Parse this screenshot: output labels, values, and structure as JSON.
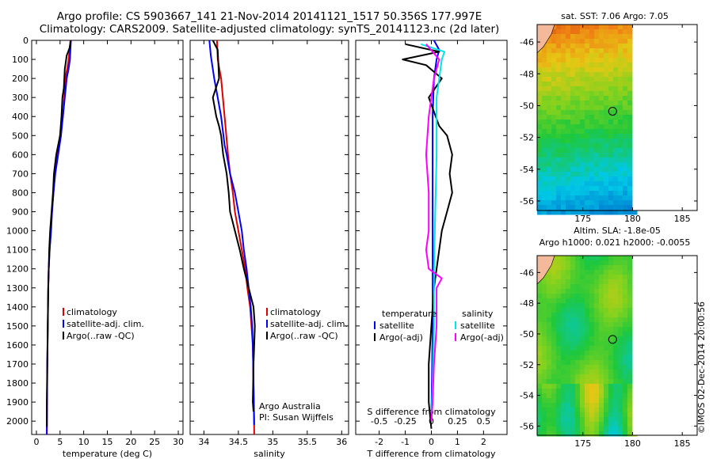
{
  "header": {
    "line1": "Argo profile: CS 5903667_141 21-Nov-2014 20141121_1517 50.356S 177.997E",
    "line2": "Climatology: CARS2009. Satellite-adjusted climatology: synTS_20141123.nc (2d later)"
  },
  "colors": {
    "climatology": "#e00000",
    "satellite": "#0000ff",
    "argo": "#000000",
    "sat_salinity": "#00e5e5",
    "argo_salinity": "#ff00ff"
  },
  "credit": "©IMOS 02-Dec-2014 20:00:56",
  "chart_data": [
    {
      "type": "line",
      "id": "temperature",
      "xlabel": "temperature (deg C)",
      "ylabel": "",
      "xlim": [
        -1,
        31
      ],
      "ylim": [
        2070,
        0
      ],
      "xticks": [
        0,
        5,
        10,
        15,
        20,
        25,
        30
      ],
      "yticks": [
        0,
        100,
        200,
        300,
        400,
        500,
        600,
        700,
        800,
        900,
        1000,
        1100,
        1200,
        1300,
        1400,
        1500,
        1600,
        1700,
        1800,
        1900,
        2000
      ],
      "legend": [
        "climatology",
        "satellite-adj. clim.",
        "Argo(..raw -QC)"
      ],
      "series": [
        {
          "name": "climatology",
          "points": [
            [
              7.2,
              0
            ],
            [
              7.0,
              50
            ],
            [
              6.8,
              100
            ],
            [
              6.5,
              150
            ],
            [
              6.1,
              200
            ],
            [
              5.9,
              300
            ],
            [
              5.6,
              400
            ],
            [
              5.0,
              500
            ],
            [
              4.4,
              600
            ],
            [
              3.9,
              700
            ],
            [
              3.6,
              800
            ],
            [
              3.3,
              900
            ],
            [
              3.0,
              1000
            ],
            [
              2.8,
              1100
            ],
            [
              2.6,
              1200
            ],
            [
              2.5,
              1300
            ],
            [
              2.4,
              1500
            ],
            [
              2.3,
              1700
            ],
            [
              2.2,
              2070
            ]
          ]
        },
        {
          "name": "satellite-adj. clim.",
          "points": [
            [
              7.3,
              0
            ],
            [
              7.2,
              50
            ],
            [
              7.1,
              100
            ],
            [
              6.8,
              150
            ],
            [
              6.4,
              200
            ],
            [
              6.0,
              300
            ],
            [
              5.6,
              400
            ],
            [
              5.2,
              500
            ],
            [
              4.6,
              600
            ],
            [
              4.0,
              700
            ],
            [
              3.6,
              800
            ],
            [
              3.3,
              900
            ],
            [
              3.1,
              1000
            ],
            [
              2.8,
              1100
            ],
            [
              2.6,
              1200
            ],
            [
              2.5,
              1300
            ],
            [
              2.4,
              1500
            ],
            [
              2.3,
              1700
            ],
            [
              2.2,
              2070
            ]
          ]
        },
        {
          "name": "Argo(..raw -QC)",
          "points": [
            [
              7.3,
              0
            ],
            [
              7.0,
              40
            ],
            [
              6.4,
              80
            ],
            [
              6.0,
              150
            ],
            [
              5.8,
              250
            ],
            [
              5.5,
              300
            ],
            [
              5.3,
              400
            ],
            [
              5.0,
              500
            ],
            [
              4.2,
              600
            ],
            [
              3.7,
              700
            ],
            [
              3.5,
              800
            ],
            [
              3.2,
              900
            ],
            [
              2.9,
              1000
            ],
            [
              2.7,
              1100
            ],
            [
              2.6,
              1200
            ],
            [
              2.5,
              1300
            ],
            [
              2.4,
              1500
            ],
            [
              2.3,
              1700
            ],
            [
              2.2,
              1900
            ],
            [
              2.2,
              2030
            ]
          ]
        }
      ]
    },
    {
      "type": "line",
      "id": "salinity",
      "xlabel": "salinity",
      "ylabel": "",
      "xlim": [
        33.8,
        36.1
      ],
      "ylim": [
        2070,
        0
      ],
      "xticks": [
        34,
        34.5,
        35,
        35.5,
        36
      ],
      "legend": [
        "climatology",
        "satellite-adj. clim.",
        "Argo(..raw -QC)"
      ],
      "annotation": [
        "Argo Australia",
        "PI: Susan Wijffels"
      ],
      "series": [
        {
          "name": "climatology",
          "points": [
            [
              34.19,
              0
            ],
            [
              34.2,
              100
            ],
            [
              34.25,
              200
            ],
            [
              34.3,
              400
            ],
            [
              34.35,
              600
            ],
            [
              34.38,
              700
            ],
            [
              34.42,
              800
            ],
            [
              34.45,
              900
            ],
            [
              34.5,
              1000
            ],
            [
              34.55,
              1100
            ],
            [
              34.6,
              1200
            ],
            [
              34.63,
              1300
            ],
            [
              34.67,
              1400
            ],
            [
              34.69,
              1500
            ],
            [
              34.71,
              1600
            ],
            [
              34.72,
              1800
            ],
            [
              34.73,
              2070
            ]
          ]
        },
        {
          "name": "satellite-adj. clim.",
          "points": [
            [
              34.08,
              0
            ],
            [
              34.1,
              80
            ],
            [
              34.15,
              200
            ],
            [
              34.2,
              300
            ],
            [
              34.25,
              400
            ],
            [
              34.3,
              550
            ],
            [
              34.33,
              600
            ],
            [
              34.38,
              700
            ],
            [
              34.45,
              800
            ],
            [
              34.5,
              900
            ],
            [
              34.55,
              1000
            ],
            [
              34.58,
              1100
            ],
            [
              34.62,
              1200
            ],
            [
              34.65,
              1300
            ],
            [
              34.68,
              1400
            ],
            [
              34.7,
              1500
            ],
            [
              34.71,
              1600
            ],
            [
              34.72,
              1800
            ],
            [
              34.73,
              2020
            ]
          ]
        },
        {
          "name": "Argo(..raw -QC)",
          "points": [
            [
              34.13,
              0
            ],
            [
              34.2,
              50
            ],
            [
              34.22,
              200
            ],
            [
              34.13,
              300
            ],
            [
              34.18,
              400
            ],
            [
              34.22,
              450
            ],
            [
              34.25,
              500
            ],
            [
              34.28,
              600
            ],
            [
              34.33,
              700
            ],
            [
              34.36,
              800
            ],
            [
              34.38,
              900
            ],
            [
              34.45,
              1000
            ],
            [
              34.52,
              1100
            ],
            [
              34.58,
              1200
            ],
            [
              34.65,
              1300
            ],
            [
              34.72,
              1400
            ],
            [
              34.74,
              1500
            ],
            [
              34.73,
              1600
            ],
            [
              34.72,
              1700
            ],
            [
              34.71,
              1900
            ],
            [
              34.72,
              1950
            ]
          ]
        }
      ]
    },
    {
      "type": "line",
      "id": "difference",
      "xlabel": "T difference from climatology",
      "xlabel_top": "S difference from climatology",
      "xlim": [
        -2.9,
        2.9
      ],
      "ylim": [
        2070,
        0
      ],
      "xticks_T": [
        -2,
        -1,
        0,
        1,
        2
      ],
      "xticks_S": [
        {
          "label": "-0.5",
          "t": -2
        },
        {
          "label": "-0.25",
          "t": -1
        },
        {
          "label": "0",
          "t": 0
        },
        {
          "label": "0.25",
          "t": 1
        },
        {
          "label": "0.5",
          "t": 2
        }
      ],
      "legend_left_title": "temperature",
      "legend_left": [
        "satellite",
        "Argo(-adj)"
      ],
      "legend_right_title": "salinity",
      "legend_right": [
        "satellite",
        "Argo(-adj)"
      ],
      "series": [
        {
          "name": "temperature satellite",
          "points": [
            [
              0.1,
              0
            ],
            [
              0.3,
              50
            ],
            [
              0.2,
              100
            ],
            [
              0.1,
              200
            ],
            [
              0.05,
              400
            ],
            [
              0.05,
              600
            ],
            [
              0.05,
              800
            ],
            [
              0.05,
              1000
            ],
            [
              0.05,
              1200
            ],
            [
              0.05,
              1500
            ],
            [
              0,
              2000
            ]
          ]
        },
        {
          "name": "temperature Argo(-adj)",
          "points": [
            [
              -1.0,
              20
            ],
            [
              0.3,
              60
            ],
            [
              -1.1,
              100
            ],
            [
              -0.2,
              130
            ],
            [
              0.4,
              200
            ],
            [
              -0.1,
              300
            ],
            [
              0.3,
              450
            ],
            [
              0.6,
              500
            ],
            [
              0.8,
              600
            ],
            [
              0.7,
              700
            ],
            [
              0.8,
              800
            ],
            [
              0.6,
              900
            ],
            [
              0.4,
              1000
            ],
            [
              0.3,
              1100
            ],
            [
              0.2,
              1200
            ],
            [
              0.1,
              1300
            ],
            [
              0,
              1500
            ],
            [
              -0.1,
              1700
            ],
            [
              -0.1,
              1900
            ],
            [
              0,
              2040
            ]
          ]
        },
        {
          "name": "salinity satellite",
          "points": [
            [
              -0.4,
              20
            ],
            [
              0.5,
              60
            ],
            [
              0.4,
              100
            ],
            [
              0.2,
              300
            ],
            [
              0.2,
              600
            ],
            [
              0.15,
              900
            ],
            [
              0.1,
              1200
            ],
            [
              0.1,
              1500
            ],
            [
              0.05,
              1800
            ],
            [
              0,
              2000
            ]
          ]
        },
        {
          "name": "salinity Argo(-adj)",
          "points": [
            [
              -0.2,
              20
            ],
            [
              0.3,
              100
            ],
            [
              0.1,
              200
            ],
            [
              -0.1,
              400
            ],
            [
              -0.2,
              600
            ],
            [
              -0.1,
              800
            ],
            [
              -0.1,
              1000
            ],
            [
              -0.2,
              1100
            ],
            [
              -0.1,
              1200
            ],
            [
              0.4,
              1250
            ],
            [
              0.2,
              1300
            ],
            [
              0.2,
              1500
            ],
            [
              0.1,
              1700
            ],
            [
              0.05,
              1900
            ],
            [
              0,
              2000
            ]
          ]
        }
      ]
    },
    {
      "type": "heatmap",
      "id": "sst-map",
      "title": "sat. SST: 7.06 Argo: 7.05",
      "xlim": [
        170.4,
        186.5
      ],
      "ylim": [
        -56.6,
        -44.9
      ],
      "xticks": [
        175,
        180,
        185
      ],
      "yticks": [
        -46,
        -48,
        -50,
        -52,
        -54,
        -56
      ],
      "marker": {
        "lon": 177.997,
        "lat": -50.356
      }
    },
    {
      "type": "heatmap",
      "id": "sla-map",
      "title": "Altim. SLA: -1.8e-05",
      "subtitle": "Argo h1000: 0.021 h2000: -0.0055",
      "xlim": [
        170.4,
        186.5
      ],
      "ylim": [
        -56.6,
        -44.9
      ],
      "xticks": [
        175,
        180,
        185
      ],
      "yticks": [
        -46,
        -48,
        -50,
        -52,
        -54,
        -56
      ],
      "marker": {
        "lon": 177.997,
        "lat": -50.356
      }
    }
  ]
}
